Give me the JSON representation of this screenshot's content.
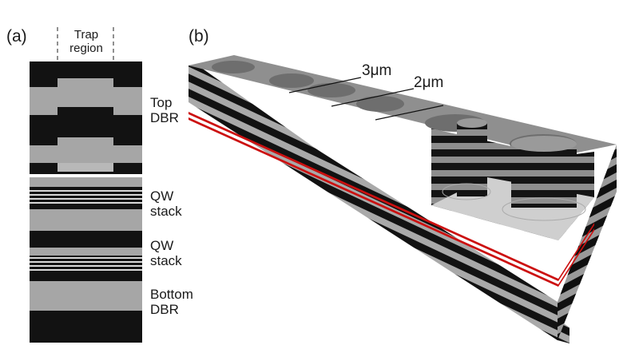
{
  "panels": {
    "a": {
      "label": "(a)",
      "trap_label": [
        "Trap",
        "region"
      ],
      "layer_labels": [
        {
          "id": "top-dbr",
          "lines": [
            "Top",
            "DBR"
          ]
        },
        {
          "id": "qw-stack-1",
          "lines": [
            "QW",
            "stack"
          ]
        },
        {
          "id": "qw-stack-2",
          "lines": [
            "QW",
            "stack"
          ]
        },
        {
          "id": "bottom-dbr",
          "lines": [
            "Bottom",
            "DBR"
          ]
        }
      ]
    },
    "b": {
      "label": "(b)",
      "dimension_labels": [
        "3μm",
        "2μm"
      ]
    }
  },
  "colors": {
    "dark_layer": "#121212",
    "light_layer": "#a6a6a6",
    "quantum_well": "#cc1010"
  }
}
